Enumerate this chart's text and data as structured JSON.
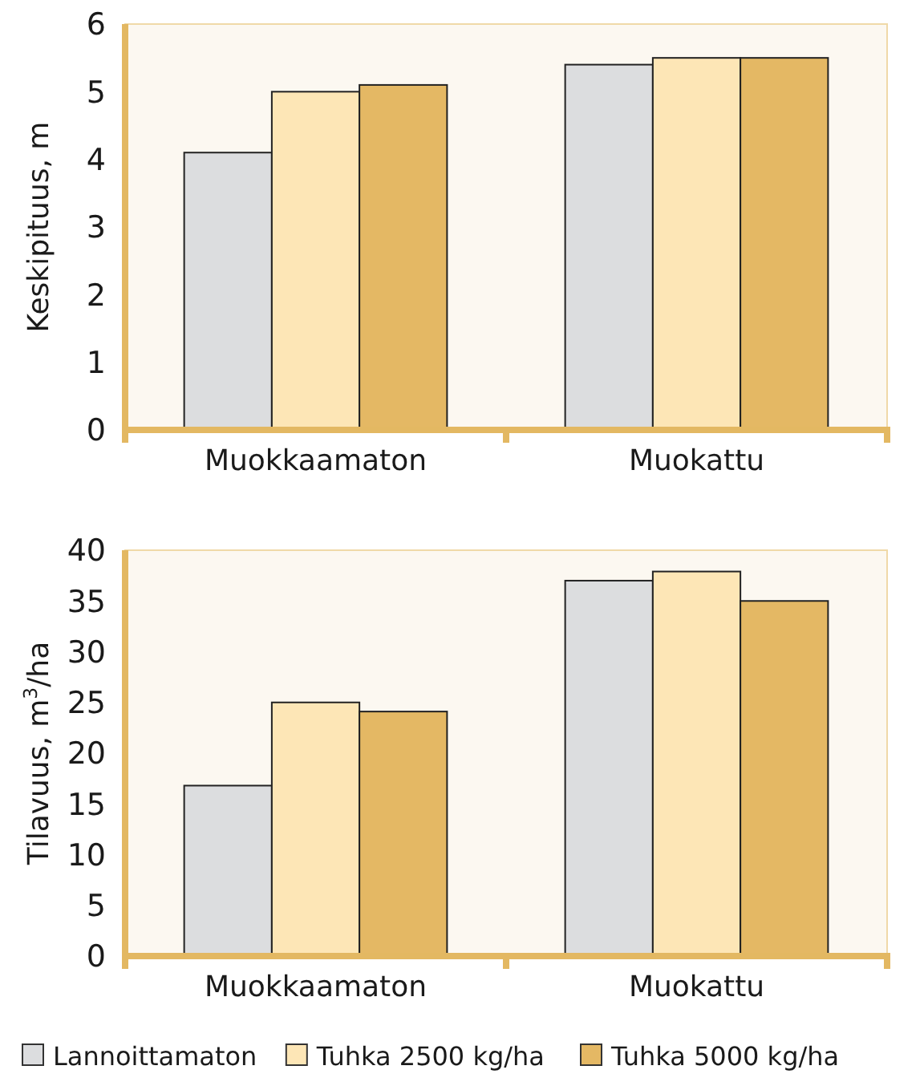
{
  "chart_data": [
    {
      "type": "bar",
      "ylabel": "Keskipituus, m",
      "categories": [
        "Muokkaamaton",
        "Muokattu"
      ],
      "series": [
        {
          "color": "#dcdddf",
          "values": [
            4.1,
            5.4
          ]
        },
        {
          "color": "#fde6b6",
          "values": [
            5.0,
            5.5
          ]
        },
        {
          "color": "#e4b864",
          "values": [
            5.1,
            5.5
          ]
        }
      ],
      "ylim": [
        0,
        6
      ],
      "yticks": [
        0,
        1,
        2,
        3,
        4,
        5,
        6
      ],
      "grid": false,
      "legend": false
    },
    {
      "type": "bar",
      "ylabel": "Tilavuus, m$^{3}$/ha",
      "categories": [
        "Muokkaamaton",
        "Muokattu"
      ],
      "series": [
        {
          "name": "Lannoittamaton",
          "color": "#dcdddf",
          "values": [
            16.8,
            37
          ]
        },
        {
          "name": "Tuhka 2500 kg/ha",
          "color": "#fde6b6",
          "values": [
            25,
            37.9
          ]
        },
        {
          "name": "Tuhka 5000 kg/ha",
          "color": "#e4b864",
          "values": [
            24.1,
            35
          ]
        }
      ],
      "ylim": [
        0,
        40
      ],
      "yticks": [
        0,
        5,
        10,
        15,
        20,
        25,
        30,
        35,
        40
      ],
      "grid": false,
      "legend": "bottom"
    }
  ]
}
